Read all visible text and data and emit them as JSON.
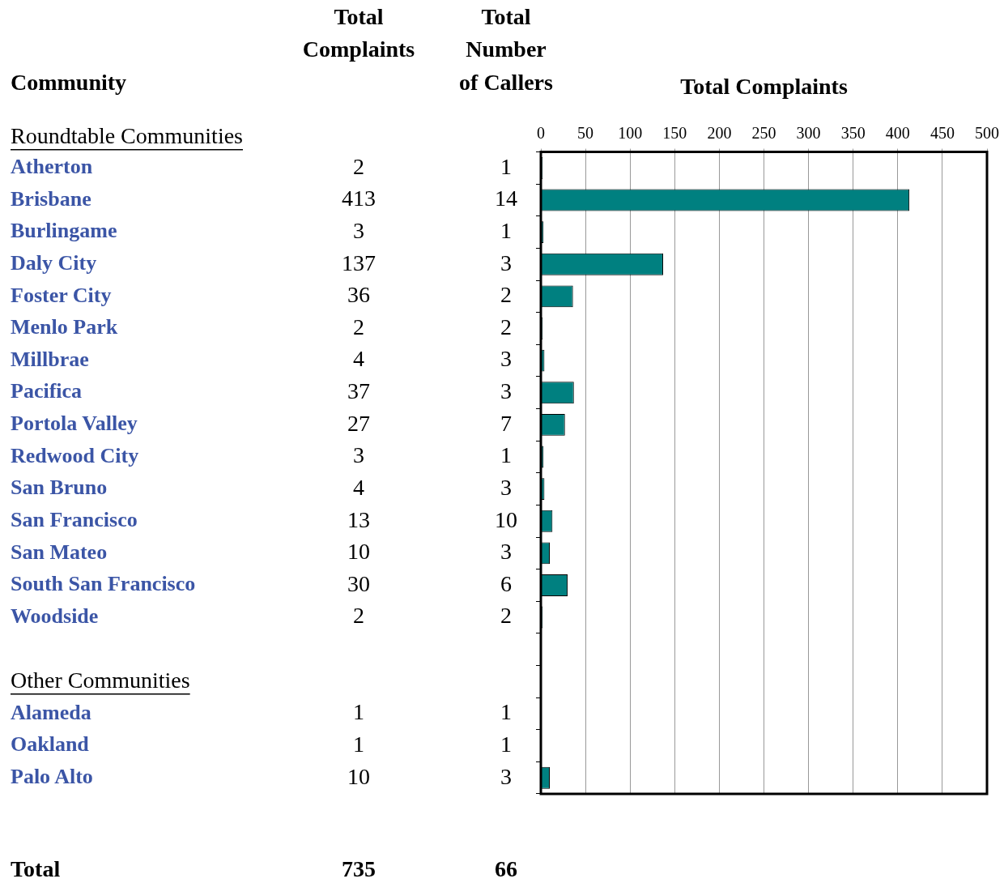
{
  "chart_data": {
    "type": "bar",
    "orientation": "horizontal",
    "x2label": "Total Complaints",
    "categories": [
      "Atherton",
      "Brisbane",
      "Burlingame",
      "Daly City",
      "Foster City",
      "Menlo Park",
      "Millbrae",
      "Pacifica",
      "Portola Valley",
      "Redwood City",
      "San Bruno",
      "San Francisco",
      "San Mateo",
      "South San Francisco",
      "Woodside",
      null,
      null,
      "Alameda",
      "Oakland",
      "Palo Alto"
    ],
    "series": [
      {
        "values": [
          2,
          413,
          3,
          137,
          36,
          2,
          4,
          37,
          27,
          3,
          4,
          13,
          10,
          30,
          2,
          null,
          null,
          1,
          1,
          10
        ],
        "color": "#008080",
        "axis": "x2"
      }
    ],
    "data_labels": true,
    "x2lim": [
      0,
      500
    ],
    "x2ticks": [
      0,
      50,
      100,
      150,
      200,
      250,
      300,
      350,
      400,
      450,
      500
    ],
    "grid": "x",
    "legend": false,
    "annotations": [
      "Total\nComplaints",
      "Total\nNumber\nof Callers",
      "Community",
      "Roundtable Communities",
      "Other Communities",
      "Total",
      "735",
      "66",
      "1",
      "14",
      "1",
      "3",
      "2",
      "2",
      "3",
      "3",
      "7",
      "1",
      "3",
      "10",
      "3",
      "6",
      "2",
      "1",
      "1",
      "3"
    ]
  }
}
